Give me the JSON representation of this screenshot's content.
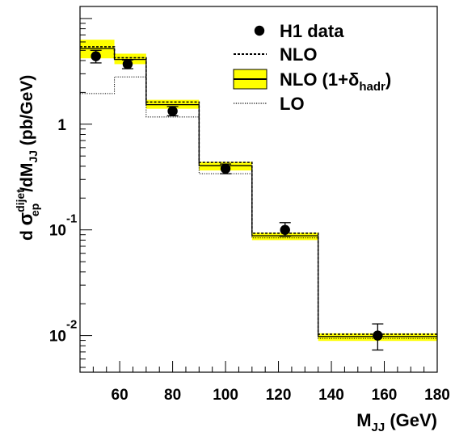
{
  "chart_data": {
    "type": "step",
    "x_scale": "linear",
    "y_scale": "log",
    "xlim": [
      45,
      180
    ],
    "ylim": [
      0.0045,
      13
    ],
    "xlabel": {
      "main": "M",
      "sub": "JJ",
      "unit": " (GeV)"
    },
    "ylabel": {
      "d": "d ",
      "sigma": "σ",
      "sup": "dijet",
      "sub": "ep",
      "rest": "/dM",
      "rest_sub": "JJ",
      "unit": "  (pb/GeV)"
    },
    "x_ticks": [
      60,
      80,
      100,
      120,
      140,
      160,
      180
    ],
    "y_tick_labels": [
      {
        "value": 1,
        "base": "1",
        "exp": ""
      },
      {
        "value": 0.1,
        "base": "10",
        "exp": "-1"
      },
      {
        "value": 0.01,
        "base": "10",
        "exp": "-2"
      }
    ],
    "bin_edges": [
      45,
      58,
      70,
      90,
      110,
      135,
      180
    ],
    "series": [
      {
        "name": "H1 data",
        "style": "points",
        "x": [
          51,
          63,
          80,
          100,
          122.5,
          157.5
        ],
        "y": [
          4.4,
          3.7,
          1.33,
          0.38,
          0.1,
          0.01
        ],
        "err_low": [
          3.8,
          3.35,
          1.2,
          0.34,
          0.087,
          0.0073
        ],
        "err_high": [
          5.0,
          4.05,
          1.47,
          0.42,
          0.117,
          0.0129
        ]
      },
      {
        "name": "NLO",
        "style": "dashed",
        "values": [
          5.4,
          4.25,
          1.62,
          0.435,
          0.093,
          0.0103
        ]
      },
      {
        "name": "NLO (1+δ",
        "name_sub": "hadr",
        "name_suffix": ")",
        "style": "band",
        "values": [
          5.2,
          4.1,
          1.53,
          0.405,
          0.088,
          0.0098
        ],
        "band_low": [
          4.2,
          3.7,
          1.4,
          0.365,
          0.08,
          0.0089
        ],
        "band_high": [
          6.3,
          4.65,
          1.7,
          0.44,
          0.094,
          0.0105
        ]
      },
      {
        "name": "LO",
        "style": "dotted",
        "values": [
          1.95,
          2.8,
          1.17,
          0.34,
          0.084,
          0.0094
        ]
      }
    ],
    "colors": {
      "band": "#ffff00",
      "line": "#000000"
    },
    "legend_position": "top-right",
    "grid": false
  }
}
